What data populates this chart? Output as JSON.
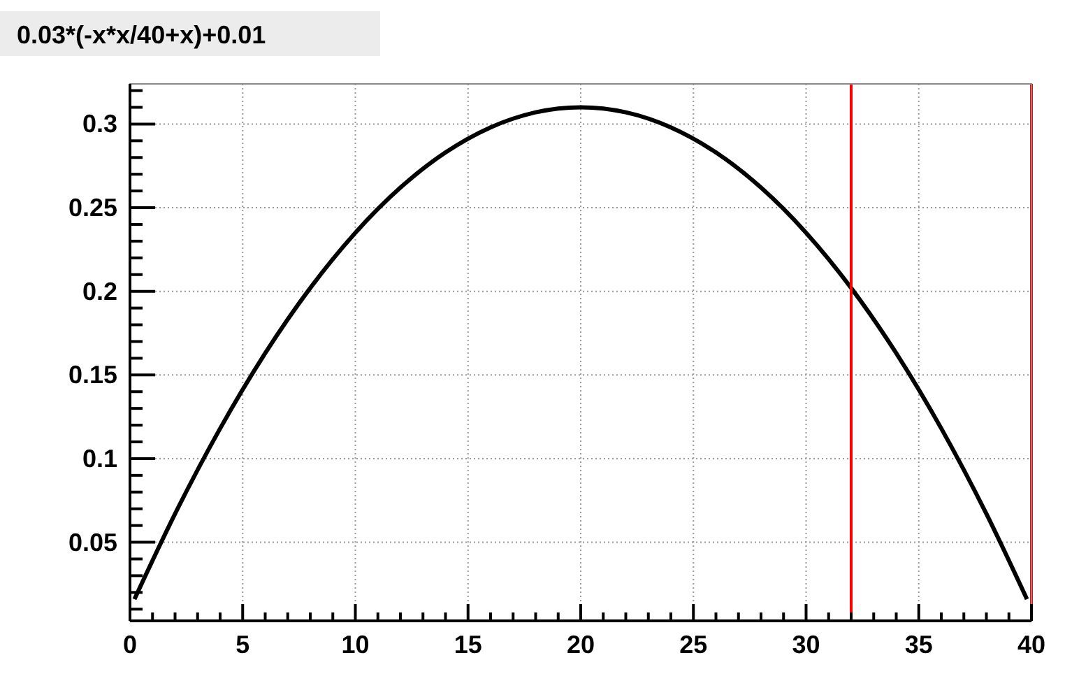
{
  "chart_data": {
    "type": "line",
    "title": "0.03*(-x*x/40+x)+0.01",
    "x": [
      0.2,
      2,
      4,
      6,
      8,
      10,
      12,
      14,
      16,
      18,
      20,
      22,
      24,
      26,
      28,
      30,
      32,
      34,
      36,
      38,
      39.8
    ],
    "series": [
      {
        "color": "#000000",
        "values": [
          0.016,
          0.067,
          0.118,
          0.163,
          0.202,
          0.235,
          0.262,
          0.283,
          0.298,
          0.307,
          0.31,
          0.307,
          0.298,
          0.283,
          0.262,
          0.235,
          0.202,
          0.163,
          0.118,
          0.067,
          0.016
        ]
      }
    ],
    "xlim": [
      0,
      40
    ],
    "ylim": [
      0.003,
      0.324
    ],
    "xticks": [
      0,
      {
        "value": 1,
        "label": null
      },
      {
        "value": 2,
        "label": null
      },
      {
        "value": 3,
        "label": null
      },
      {
        "value": 4,
        "label": null
      },
      5,
      {
        "value": 6,
        "label": null
      },
      {
        "value": 7,
        "label": null
      },
      {
        "value": 8,
        "label": null
      },
      {
        "value": 9,
        "label": null
      },
      10,
      {
        "value": 11,
        "label": null
      },
      {
        "value": 12,
        "label": null
      },
      {
        "value": 13,
        "label": null
      },
      {
        "value": 14,
        "label": null
      },
      15,
      {
        "value": 16,
        "label": null
      },
      {
        "value": 17,
        "label": null
      },
      {
        "value": 18,
        "label": null
      },
      {
        "value": 19,
        "label": null
      },
      20,
      {
        "value": 21,
        "label": null
      },
      {
        "value": 22,
        "label": null
      },
      {
        "value": 23,
        "label": null
      },
      {
        "value": 24,
        "label": null
      },
      25,
      {
        "value": 26,
        "label": null
      },
      {
        "value": 27,
        "label": null
      },
      {
        "value": 28,
        "label": null
      },
      {
        "value": 29,
        "label": null
      },
      30,
      {
        "value": 31,
        "label": null
      },
      {
        "value": 32,
        "label": null
      },
      {
        "value": 33,
        "label": null
      },
      {
        "value": 34,
        "label": null
      },
      35,
      {
        "value": 36,
        "label": null
      },
      {
        "value": 37,
        "label": null
      },
      {
        "value": 38,
        "label": null
      },
      {
        "value": 39,
        "label": null
      },
      40
    ],
    "yticks": [
      {
        "value": 0.01,
        "label": null
      },
      {
        "value": 0.02,
        "label": null
      },
      {
        "value": 0.03,
        "label": null
      },
      {
        "value": 0.04,
        "label": null
      },
      0.05,
      {
        "value": 0.06,
        "label": null
      },
      {
        "value": 0.07,
        "label": null
      },
      {
        "value": 0.08,
        "label": null
      },
      {
        "value": 0.09,
        "label": null
      },
      0.1,
      {
        "value": 0.11,
        "label": null
      },
      {
        "value": 0.12,
        "label": null
      },
      {
        "value": 0.13,
        "label": null
      },
      {
        "value": 0.14,
        "label": null
      },
      0.15,
      {
        "value": 0.16,
        "label": null
      },
      {
        "value": 0.17,
        "label": null
      },
      {
        "value": 0.18,
        "label": null
      },
      {
        "value": 0.19,
        "label": null
      },
      0.2,
      {
        "value": 0.21,
        "label": null
      },
      {
        "value": 0.22,
        "label": null
      },
      {
        "value": 0.23,
        "label": null
      },
      {
        "value": 0.24,
        "label": null
      },
      0.25,
      {
        "value": 0.26,
        "label": null
      },
      {
        "value": 0.27,
        "label": null
      },
      {
        "value": 0.28,
        "label": null
      },
      {
        "value": 0.29,
        "label": null
      },
      0.3,
      {
        "value": 0.31,
        "label": null
      },
      {
        "value": 0.32,
        "label": null
      }
    ],
    "grid": true,
    "ref_lines": [
      {
        "axis": "x",
        "value": 32,
        "color": "#ff0000"
      },
      {
        "axis": "x",
        "value": 40,
        "color": "#ff0000"
      }
    ]
  }
}
